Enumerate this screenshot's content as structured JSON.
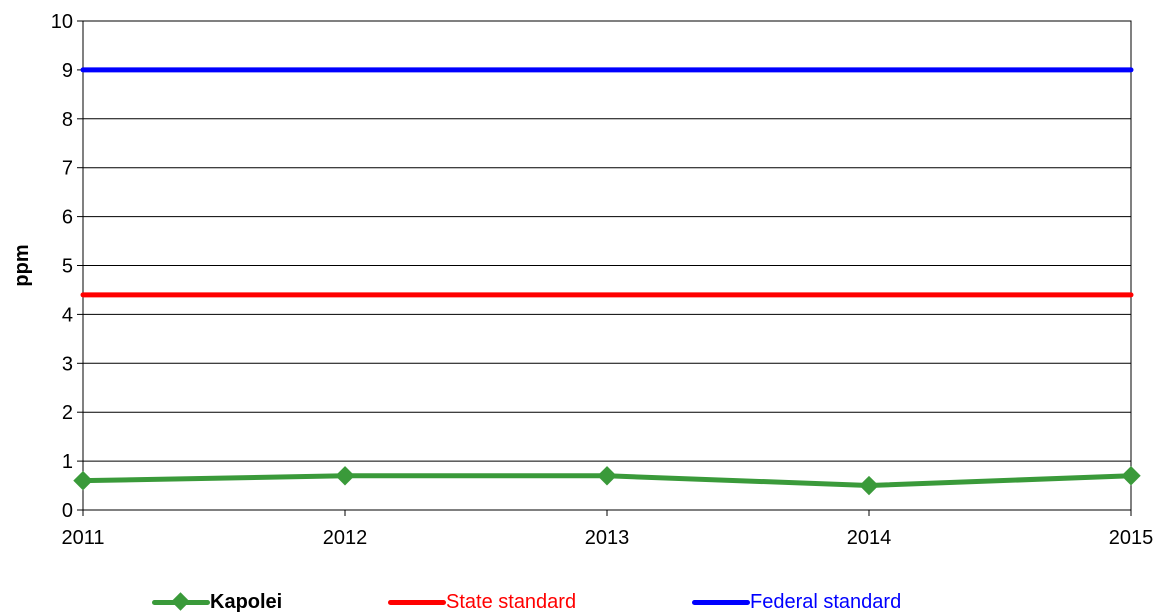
{
  "chart_data": {
    "type": "line",
    "title": "",
    "xlabel": "",
    "ylabel": "ppm",
    "ylim": [
      0,
      10
    ],
    "yticks": [
      0,
      1,
      2,
      3,
      4,
      5,
      6,
      7,
      8,
      9,
      10
    ],
    "categories": [
      "2011",
      "2012",
      "2013",
      "2014",
      "2015"
    ],
    "grid": true,
    "legend_position": "bottom",
    "series": [
      {
        "name": "Kapolei",
        "values": [
          0.6,
          0.7,
          0.7,
          0.5,
          0.7
        ],
        "color": "#3a9a3a",
        "marker": "diamond",
        "label_bold": true,
        "label_color": "#000000"
      },
      {
        "name": "State standard",
        "values": [
          4.4,
          4.4,
          4.4,
          4.4,
          4.4
        ],
        "color": "#ff0000",
        "marker": "none",
        "label_color": "#ff0000"
      },
      {
        "name": "Federal standard",
        "values": [
          9,
          9,
          9,
          9,
          9
        ],
        "color": "#0000ff",
        "marker": "none",
        "label_color": "#0000ff"
      }
    ]
  }
}
